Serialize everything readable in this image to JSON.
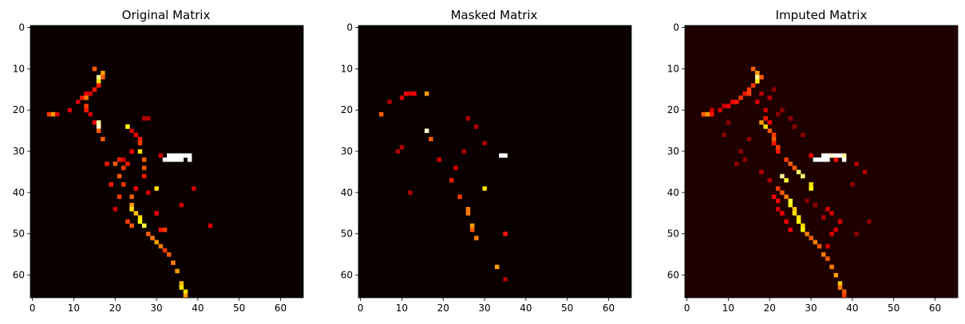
{
  "figure": {
    "panels": [
      {
        "title": "Original Matrix"
      },
      {
        "title": "Masked Matrix"
      },
      {
        "title": "Imputed Matrix"
      }
    ]
  },
  "chart_data": [
    {
      "type": "heatmap",
      "title": "Original Matrix",
      "colormap": "hot",
      "background_color": "#0a0000",
      "matrix_size": [
        66,
        66
      ],
      "xlim": [
        -0.5,
        65.5
      ],
      "ylim": [
        65.5,
        -0.5
      ],
      "xticks": [
        0,
        10,
        20,
        30,
        40,
        50,
        60
      ],
      "yticks": [
        0,
        10,
        20,
        30,
        40,
        50,
        60
      ],
      "cells": [
        [
          15,
          10,
          0.5
        ],
        [
          17,
          11,
          0.6
        ],
        [
          16,
          12,
          0.9
        ],
        [
          17,
          12,
          0.5
        ],
        [
          16,
          13,
          0.7
        ],
        [
          16,
          14,
          0.4
        ],
        [
          15,
          15,
          0.4
        ],
        [
          13,
          16,
          0.35
        ],
        [
          14,
          16,
          0.3
        ],
        [
          12,
          17,
          0.4
        ],
        [
          13,
          17,
          0.55
        ],
        [
          11,
          18,
          0.3
        ],
        [
          13,
          19,
          0.45
        ],
        [
          13,
          20,
          0.4
        ],
        [
          9,
          20,
          0.3
        ],
        [
          4,
          21,
          0.45
        ],
        [
          5,
          21,
          0.6
        ],
        [
          6,
          21,
          0.3
        ],
        [
          14,
          21,
          0.3
        ],
        [
          15,
          23,
          0.35
        ],
        [
          16,
          23,
          0.9
        ],
        [
          16,
          24,
          0.95
        ],
        [
          23,
          24,
          0.75
        ],
        [
          16,
          25,
          0.5
        ],
        [
          24,
          25,
          0.3
        ],
        [
          17,
          27,
          0.5
        ],
        [
          26,
          30,
          0.7
        ],
        [
          31,
          31,
          0.3
        ],
        [
          33,
          31,
          1.0
        ],
        [
          34,
          31,
          1.0
        ],
        [
          35,
          31,
          1.0
        ],
        [
          36,
          31,
          1.0
        ],
        [
          37,
          31,
          1.0
        ],
        [
          38,
          31,
          1.0
        ],
        [
          32,
          32,
          1.0
        ],
        [
          33,
          32,
          1.0
        ],
        [
          34,
          32,
          1.0
        ],
        [
          35,
          32,
          1.0
        ],
        [
          36,
          32,
          1.0
        ],
        [
          38,
          32,
          1.0
        ],
        [
          27,
          32,
          0.5
        ],
        [
          21,
          32,
          0.4
        ],
        [
          22,
          32,
          0.3
        ],
        [
          18,
          33,
          0.4
        ],
        [
          20,
          33,
          0.5
        ],
        [
          22,
          34,
          0.45
        ],
        [
          27,
          34,
          0.5
        ],
        [
          27,
          36,
          0.4
        ],
        [
          21,
          36,
          0.5
        ],
        [
          19,
          38,
          0.4
        ],
        [
          22,
          38,
          0.45
        ],
        [
          30,
          39,
          0.7
        ],
        [
          21,
          41,
          0.45
        ],
        [
          24,
          41,
          0.5
        ],
        [
          24,
          43,
          0.6
        ],
        [
          24,
          44,
          0.7
        ],
        [
          25,
          45,
          0.65
        ],
        [
          26,
          46,
          0.7
        ],
        [
          23,
          47,
          0.45
        ],
        [
          26,
          47,
          0.75
        ],
        [
          24,
          48,
          0.5
        ],
        [
          27,
          48,
          0.8
        ],
        [
          31,
          49,
          0.4
        ],
        [
          32,
          49,
          0.45
        ],
        [
          28,
          50,
          0.5
        ],
        [
          29,
          51,
          0.55
        ],
        [
          30,
          52,
          0.6
        ],
        [
          31,
          53,
          0.55
        ],
        [
          32,
          54,
          0.45
        ],
        [
          33,
          55,
          0.5
        ],
        [
          34,
          57,
          0.55
        ],
        [
          35,
          59,
          0.6
        ],
        [
          36,
          62,
          0.65
        ],
        [
          36,
          63,
          0.7
        ],
        [
          37,
          64,
          0.7
        ],
        [
          37,
          65,
          0.6
        ],
        [
          25,
          26,
          0.35
        ],
        [
          26,
          27,
          0.4
        ],
        [
          26,
          28,
          0.45
        ],
        [
          24,
          30,
          0.35
        ],
        [
          23,
          33,
          0.4
        ],
        [
          43,
          48,
          0.3
        ],
        [
          39,
          39,
          0.3
        ],
        [
          36,
          43,
          0.3
        ],
        [
          27,
          22,
          0.25
        ],
        [
          28,
          22,
          0.25
        ],
        [
          20,
          44,
          0.3
        ],
        [
          25,
          39,
          0.35
        ],
        [
          28,
          40,
          0.3
        ],
        [
          30,
          45,
          0.35
        ]
      ]
    },
    {
      "type": "heatmap",
      "title": "Masked Matrix",
      "colormap": "hot",
      "background_color": "#0a0000",
      "matrix_size": [
        66,
        66
      ],
      "xlim": [
        -0.5,
        65.5
      ],
      "ylim": [
        65.5,
        -0.5
      ],
      "xticks": [
        0,
        10,
        20,
        30,
        40,
        50,
        60
      ],
      "yticks": [
        0,
        10,
        20,
        30,
        40,
        50,
        60
      ],
      "cells": [
        [
          11,
          16,
          0.35
        ],
        [
          12,
          16,
          0.3
        ],
        [
          13,
          16,
          0.35
        ],
        [
          16,
          16,
          0.6
        ],
        [
          10,
          17,
          0.3
        ],
        [
          7,
          18,
          0.25
        ],
        [
          5,
          21,
          0.5
        ],
        [
          16,
          25,
          0.95
        ],
        [
          17,
          27,
          0.5
        ],
        [
          26,
          22,
          0.25
        ],
        [
          28,
          24,
          0.25
        ],
        [
          10,
          29,
          0.25
        ],
        [
          9,
          30,
          0.25
        ],
        [
          25,
          30,
          0.25
        ],
        [
          30,
          28,
          0.25
        ],
        [
          34,
          31,
          1.0
        ],
        [
          35,
          31,
          1.0
        ],
        [
          19,
          32,
          0.3
        ],
        [
          23,
          34,
          0.3
        ],
        [
          22,
          37,
          0.4
        ],
        [
          30,
          39,
          0.7
        ],
        [
          12,
          40,
          0.25
        ],
        [
          24,
          41,
          0.45
        ],
        [
          26,
          44,
          0.55
        ],
        [
          26,
          45,
          0.55
        ],
        [
          27,
          48,
          0.6
        ],
        [
          27,
          49,
          0.5
        ],
        [
          28,
          51,
          0.55
        ],
        [
          35,
          50,
          0.4
        ],
        [
          33,
          58,
          0.6
        ],
        [
          35,
          61,
          0.25
        ]
      ]
    },
    {
      "type": "heatmap",
      "title": "Imputed Matrix",
      "colormap": "hot",
      "background_color": "#1f0000",
      "matrix_size": [
        66,
        66
      ],
      "xlim": [
        -0.5,
        65.5
      ],
      "ylim": [
        65.5,
        -0.5
      ],
      "xticks": [
        0,
        10,
        20,
        30,
        40,
        50,
        60
      ],
      "yticks": [
        0,
        10,
        20,
        30,
        40,
        50,
        60
      ],
      "cells": [
        [
          16,
          10,
          0.5
        ],
        [
          17,
          11,
          0.6
        ],
        [
          17,
          12,
          0.9
        ],
        [
          18,
          12,
          0.5
        ],
        [
          17,
          13,
          0.7
        ],
        [
          16,
          14,
          0.45
        ],
        [
          15,
          15,
          0.45
        ],
        [
          14,
          16,
          0.4
        ],
        [
          15,
          16,
          0.45
        ],
        [
          13,
          17,
          0.45
        ],
        [
          12,
          18,
          0.4
        ],
        [
          11,
          18,
          0.35
        ],
        [
          10,
          19,
          0.35
        ],
        [
          9,
          19,
          0.3
        ],
        [
          8,
          20,
          0.3
        ],
        [
          6,
          20,
          0.3
        ],
        [
          4,
          21,
          0.5
        ],
        [
          5,
          21,
          0.6
        ],
        [
          6,
          21,
          0.4
        ],
        [
          19,
          22,
          0.4
        ],
        [
          20,
          23,
          0.35
        ],
        [
          18,
          23,
          0.6
        ],
        [
          19,
          24,
          0.7
        ],
        [
          20,
          25,
          0.5
        ],
        [
          21,
          26,
          0.45
        ],
        [
          21,
          27,
          0.5
        ],
        [
          21,
          28,
          0.4
        ],
        [
          22,
          29,
          0.45
        ],
        [
          22,
          30,
          0.4
        ],
        [
          33,
          31,
          1.0
        ],
        [
          34,
          31,
          1.0
        ],
        [
          35,
          31,
          0.95
        ],
        [
          36,
          31,
          1.0
        ],
        [
          37,
          31,
          1.0
        ],
        [
          38,
          31,
          0.9
        ],
        [
          31,
          32,
          1.0
        ],
        [
          32,
          32,
          1.0
        ],
        [
          33,
          32,
          1.0
        ],
        [
          34,
          32,
          1.0
        ],
        [
          36,
          32,
          0.4
        ],
        [
          38,
          32,
          1.0
        ],
        [
          30,
          31,
          0.35
        ],
        [
          24,
          32,
          0.45
        ],
        [
          25,
          33,
          0.5
        ],
        [
          26,
          34,
          0.5
        ],
        [
          27,
          35,
          0.85
        ],
        [
          28,
          36,
          0.85
        ],
        [
          30,
          38,
          0.7
        ],
        [
          30,
          39,
          0.75
        ],
        [
          23,
          36,
          0.9
        ],
        [
          24,
          37,
          0.8
        ],
        [
          22,
          39,
          0.45
        ],
        [
          23,
          40,
          0.5
        ],
        [
          24,
          41,
          0.55
        ],
        [
          25,
          42,
          0.8
        ],
        [
          25,
          43,
          0.75
        ],
        [
          26,
          44,
          0.65
        ],
        [
          26,
          45,
          0.7
        ],
        [
          27,
          46,
          0.7
        ],
        [
          27,
          47,
          0.75
        ],
        [
          28,
          48,
          0.7
        ],
        [
          28,
          49,
          0.75
        ],
        [
          29,
          50,
          0.55
        ],
        [
          30,
          51,
          0.5
        ],
        [
          31,
          52,
          0.55
        ],
        [
          32,
          53,
          0.5
        ],
        [
          33,
          55,
          0.55
        ],
        [
          34,
          56,
          0.5
        ],
        [
          35,
          58,
          0.55
        ],
        [
          36,
          60,
          0.6
        ],
        [
          37,
          62,
          0.65
        ],
        [
          37,
          63,
          0.55
        ],
        [
          38,
          64,
          0.5
        ],
        [
          38,
          65,
          0.45
        ],
        [
          21,
          41,
          0.35
        ],
        [
          22,
          42,
          0.35
        ],
        [
          22,
          44,
          0.3
        ],
        [
          23,
          45,
          0.35
        ],
        [
          24,
          47,
          0.35
        ],
        [
          25,
          49,
          0.35
        ],
        [
          34,
          44,
          0.3
        ],
        [
          35,
          45,
          0.3
        ],
        [
          37,
          47,
          0.3
        ],
        [
          36,
          49,
          0.3
        ],
        [
          34,
          53,
          0.3
        ],
        [
          35,
          50,
          0.3
        ],
        [
          25,
          22,
          0.2
        ],
        [
          26,
          24,
          0.2
        ],
        [
          28,
          26,
          0.2
        ],
        [
          23,
          20,
          0.2
        ],
        [
          22,
          21,
          0.2
        ],
        [
          13,
          30,
          0.2
        ],
        [
          14,
          32,
          0.2
        ],
        [
          12,
          33,
          0.2
        ],
        [
          10,
          23,
          0.2
        ],
        [
          9,
          26,
          0.2
        ],
        [
          15,
          27,
          0.2
        ],
        [
          18,
          35,
          0.25
        ],
        [
          20,
          37,
          0.25
        ],
        [
          41,
          33,
          0.25
        ],
        [
          43,
          35,
          0.25
        ],
        [
          40,
          38,
          0.2
        ],
        [
          29,
          42,
          0.2
        ],
        [
          31,
          43,
          0.2
        ],
        [
          33,
          46,
          0.25
        ],
        [
          41,
          50,
          0.2
        ],
        [
          44,
          47,
          0.2
        ],
        [
          20,
          17,
          0.25
        ],
        [
          21,
          15,
          0.2
        ],
        [
          18,
          16,
          0.25
        ],
        [
          19,
          20,
          0.3
        ],
        [
          17,
          18,
          0.3
        ]
      ]
    }
  ]
}
